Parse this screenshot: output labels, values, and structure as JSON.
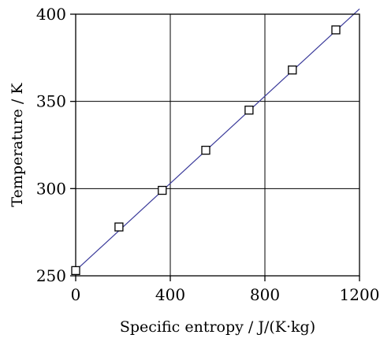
{
  "chart_data": {
    "type": "scatter",
    "xlabel": "Specific entropy / J/(K·kg)",
    "ylabel": "Temperature / K",
    "xlim": [
      0,
      1200
    ],
    "ylim": [
      250,
      400
    ],
    "xticks": [
      0,
      400,
      800,
      1200
    ],
    "yticks": [
      250,
      300,
      350,
      400
    ],
    "grid": true,
    "series": [
      {
        "marker": "open-square",
        "x": [
          0,
          183,
          366,
          550,
          733,
          916,
          1100
        ],
        "y": [
          253,
          278,
          299,
          322,
          345,
          368,
          391
        ]
      }
    ],
    "fit_line": {
      "x": [
        0,
        1200
      ],
      "y": [
        253,
        403
      ]
    },
    "colors": {
      "line": "#3a3a9a",
      "axes": "#000000",
      "marker_edge": "#000000"
    }
  }
}
